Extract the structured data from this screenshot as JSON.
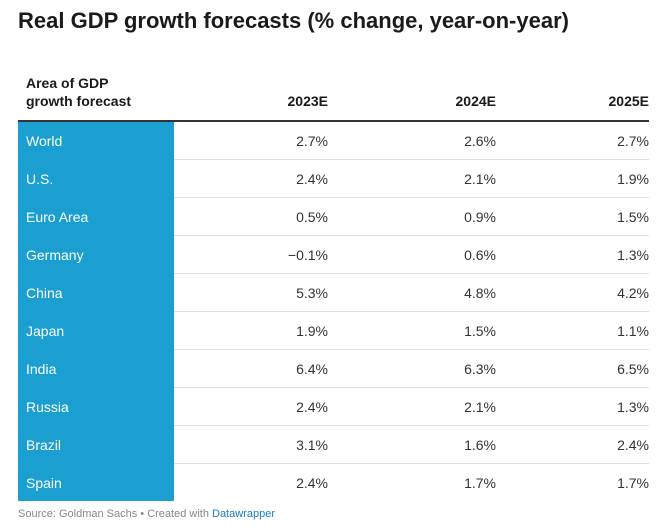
{
  "title": "Real GDP growth forecasts (% change, year-on-year)",
  "colors": {
    "area_cell_background": "#1a9fd0",
    "area_cell_text": "#ffffff",
    "header_rule": "#333333",
    "row_divider": "#e3e3e3",
    "footer_link": "#1a7cc0"
  },
  "chart_data": {
    "type": "table",
    "title": "Real GDP growth forecasts (% change, year-on-year)",
    "columns": [
      "Area of GDP growth forecast",
      "2023E",
      "2024E",
      "2025E"
    ],
    "header_lines": {
      "area_line1": "Area of GDP",
      "area_line2": "growth forecast"
    },
    "rows": [
      {
        "area": "World",
        "values": [
          "2.7%",
          "2.6%",
          "2.7%"
        ]
      },
      {
        "area": "U.S.",
        "values": [
          "2.4%",
          "2.1%",
          "1.9%"
        ]
      },
      {
        "area": "Euro Area",
        "values": [
          "0.5%",
          "0.9%",
          "1.5%"
        ]
      },
      {
        "area": "Germany",
        "values": [
          "−0.1%",
          "0.6%",
          "1.3%"
        ]
      },
      {
        "area": "China",
        "values": [
          "5.3%",
          "4.8%",
          "4.2%"
        ]
      },
      {
        "area": "Japan",
        "values": [
          "1.9%",
          "1.5%",
          "1.1%"
        ]
      },
      {
        "area": "India",
        "values": [
          "6.4%",
          "6.3%",
          "6.5%"
        ]
      },
      {
        "area": "Russia",
        "values": [
          "2.4%",
          "2.1%",
          "1.3%"
        ]
      },
      {
        "area": "Brazil",
        "values": [
          "3.1%",
          "1.6%",
          "2.4%"
        ]
      },
      {
        "area": "Spain",
        "values": [
          "2.4%",
          "1.7%",
          "1.7%"
        ]
      }
    ]
  },
  "footer": {
    "source_text": "Source: Goldman Sachs • Created with ",
    "link_text": "Datawrapper"
  }
}
